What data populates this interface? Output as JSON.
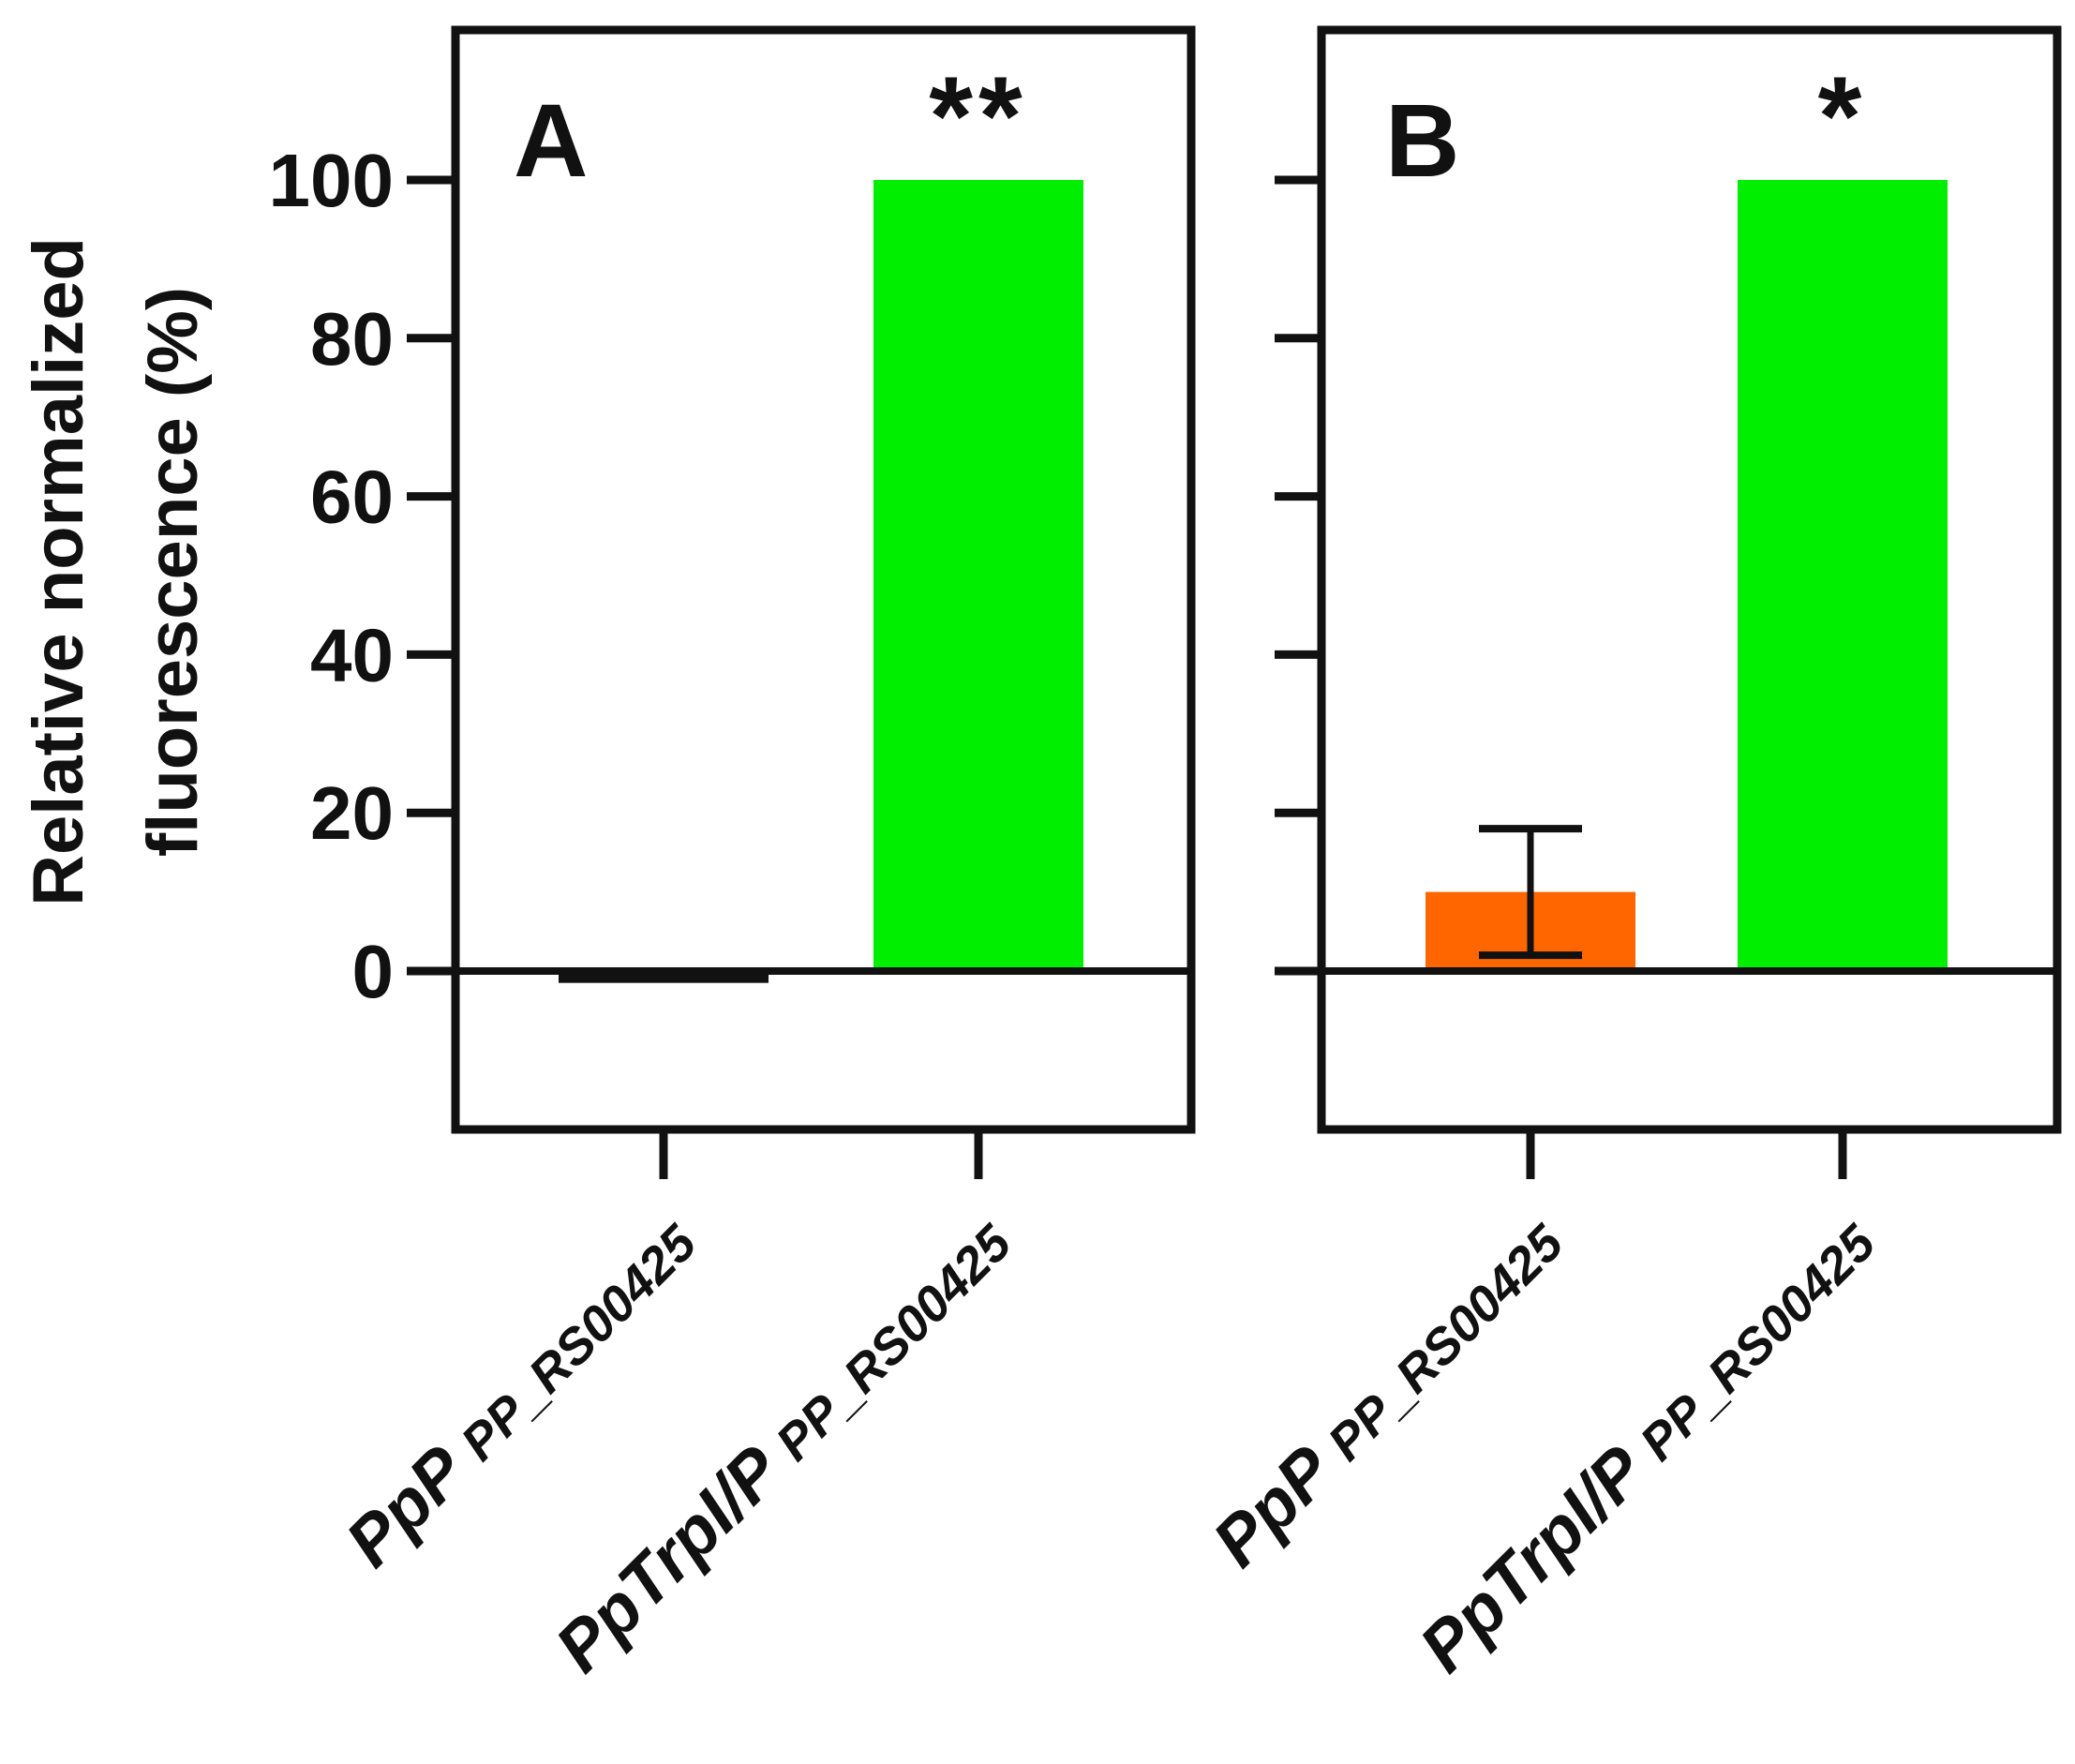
{
  "chart_data": {
    "type": "bar",
    "ylabel": [
      "Relative normalized",
      "fluorescence (%)"
    ],
    "ylim": [
      -20,
      120
    ],
    "yticks": [
      0,
      20,
      40,
      60,
      80,
      100
    ],
    "colors": {
      "axis": "#111111",
      "green": "#00ee00",
      "orange": "#ff6600"
    },
    "panels": [
      {
        "label": "A",
        "categories": [
          {
            "main": "PpP",
            "sub": "PP_RS00425"
          },
          {
            "main": "PpTrpI/P",
            "sub": "PP_RS00425"
          }
        ],
        "values": [
          -1.5,
          100
        ],
        "errors": [
          0,
          0
        ],
        "bar_colors": [
          "#111111",
          "#00ee00"
        ],
        "significance": [
          "",
          "**"
        ]
      },
      {
        "label": "B",
        "categories": [
          {
            "main": "PpP",
            "sub": "PP_RS00425"
          },
          {
            "main": "PpTrpI/P",
            "sub": "PP_RS00425"
          }
        ],
        "values": [
          10,
          100
        ],
        "errors": [
          8,
          0
        ],
        "bar_colors": [
          "#ff6600",
          "#00ee00"
        ],
        "significance": [
          "",
          "*"
        ]
      }
    ]
  }
}
